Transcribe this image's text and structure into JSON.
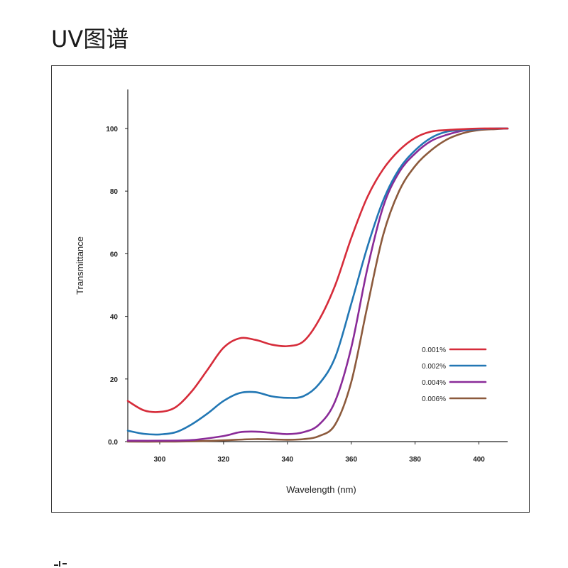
{
  "page": {
    "title": "UV图谱"
  },
  "chart_data": {
    "type": "line",
    "title": "",
    "xlabel": "Wavelength (nm)",
    "ylabel": "Transmittance",
    "xlim": [
      290,
      409
    ],
    "ylim": [
      0,
      117
    ],
    "xticks": [
      300,
      320,
      340,
      360,
      380,
      400
    ],
    "yticks": [
      0,
      20,
      40,
      60,
      80,
      100
    ],
    "ytick_labels": [
      "0.0",
      "20",
      "40",
      "60",
      "80",
      "100"
    ],
    "grid": false,
    "legend_position": "right",
    "series": [
      {
        "name": "0.001%",
        "color": "#d62c3a",
        "x": [
          290,
          295,
          300,
          305,
          310,
          315,
          320,
          325,
          330,
          335,
          340,
          345,
          350,
          355,
          360,
          365,
          370,
          375,
          380,
          385,
          390,
          395,
          400,
          405,
          409
        ],
        "y": [
          13,
          10,
          9.5,
          11,
          16,
          23,
          30,
          33,
          32.5,
          31,
          30.5,
          32,
          39,
          50,
          65,
          78,
          87,
          93,
          97,
          99,
          99.5,
          99.8,
          100,
          100,
          100
        ]
      },
      {
        "name": "0.002%",
        "color": "#2277b4",
        "x": [
          290,
          295,
          300,
          305,
          310,
          315,
          320,
          325,
          330,
          335,
          340,
          345,
          350,
          355,
          360,
          365,
          370,
          375,
          380,
          385,
          390,
          395,
          400,
          405,
          409
        ],
        "y": [
          3.5,
          2.5,
          2.3,
          3,
          5.5,
          9,
          13,
          15.5,
          15.8,
          14.5,
          14,
          14.5,
          18.5,
          27,
          44,
          62,
          77,
          87,
          93,
          97,
          99,
          99.5,
          99.8,
          100,
          100
        ]
      },
      {
        "name": "0.004%",
        "color": "#8a2b98",
        "x": [
          290,
          300,
          310,
          320,
          325,
          330,
          335,
          340,
          345,
          350,
          355,
          360,
          365,
          370,
          375,
          380,
          385,
          390,
          395,
          400,
          405,
          409
        ],
        "y": [
          0.3,
          0.3,
          0.5,
          1.8,
          3,
          3.2,
          2.8,
          2.4,
          3,
          5.5,
          13,
          30,
          55,
          75,
          86,
          92,
          96,
          98,
          99.3,
          99.8,
          100,
          100
        ]
      },
      {
        "name": "0.006%",
        "color": "#8c5a3c",
        "x": [
          290,
          300,
          310,
          320,
          330,
          340,
          345,
          350,
          355,
          360,
          365,
          370,
          375,
          380,
          385,
          390,
          395,
          400,
          405,
          409
        ],
        "y": [
          0,
          0,
          0.1,
          0.4,
          0.8,
          0.6,
          0.8,
          1.8,
          5.5,
          19,
          43,
          66,
          80,
          88,
          93,
          96.5,
          98.5,
          99.5,
          99.8,
          100
        ]
      }
    ]
  }
}
